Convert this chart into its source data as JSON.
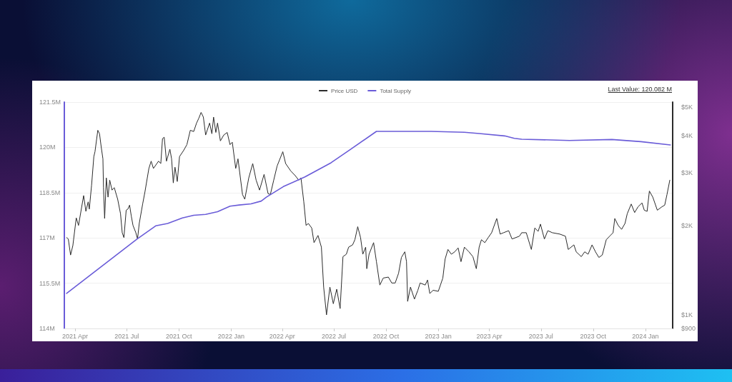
{
  "chart_data": {
    "type": "line",
    "legend": "top",
    "grid": "y",
    "marker": "none",
    "line_style": "solid",
    "log": "y2",
    "xlim": [
      "2021-03-13",
      "2024-02-18"
    ],
    "xticks": [
      {
        "value": "2021-04-01",
        "label": "2021 Apr"
      },
      {
        "value": "2021-07-01",
        "label": "2021 Jul"
      },
      {
        "value": "2021-10-01",
        "label": "2021 Oct"
      },
      {
        "value": "2022-01-01",
        "label": "2022 Jan"
      },
      {
        "value": "2022-04-01",
        "label": "2022 Apr"
      },
      {
        "value": "2022-07-01",
        "label": "2022 Jul"
      },
      {
        "value": "2022-10-01",
        "label": "2022 Oct"
      },
      {
        "value": "2023-01-01",
        "label": "2023 Jan"
      },
      {
        "value": "2023-04-01",
        "label": "2023 Apr"
      },
      {
        "value": "2023-07-01",
        "label": "2023 Jul"
      },
      {
        "value": "2023-10-01",
        "label": "2023 Oct"
      },
      {
        "value": "2024-01-01",
        "label": "2024 Jan"
      }
    ],
    "ylim": [
      114,
      121.5
    ],
    "yticks": [
      {
        "value": 114,
        "label": "114M"
      },
      {
        "value": 115.5,
        "label": "115.5M"
      },
      {
        "value": 117,
        "label": "117M"
      },
      {
        "value": 118.5,
        "label": "118.5M"
      },
      {
        "value": 120,
        "label": "120M"
      },
      {
        "value": 121.5,
        "label": "121.5M"
      }
    ],
    "y2lim": [
      900,
      5200
    ],
    "y2ticks": [
      {
        "value": 900,
        "label": "$900"
      },
      {
        "value": 1000,
        "label": "$1K"
      },
      {
        "value": 2000,
        "label": "$2K"
      },
      {
        "value": 3000,
        "label": "$3K"
      },
      {
        "value": 4000,
        "label": "$4K"
      },
      {
        "value": 5000,
        "label": "$5K"
      }
    ],
    "annotations": [
      "Last Value: 120.082 M"
    ],
    "series": [
      {
        "name": "Price USD",
        "color": "#2b2b2b",
        "axis": "y2",
        "x": [
          "2021-03-17",
          "2021-03-20",
          "2021-03-24",
          "2021-03-28",
          "2021-04-03",
          "2021-04-07",
          "2021-04-16",
          "2021-04-20",
          "2021-04-24",
          "2021-04-26",
          "2021-04-30",
          "2021-05-04",
          "2021-05-06",
          "2021-05-11",
          "2021-05-14",
          "2021-05-17",
          "2021-05-20",
          "2021-05-21",
          "2021-05-23",
          "2021-05-26",
          "2021-05-29",
          "2021-06-01",
          "2021-06-05",
          "2021-06-09",
          "2021-06-15",
          "2021-06-20",
          "2021-06-23",
          "2021-06-26",
          "2021-06-30",
          "2021-07-03",
          "2021-07-06",
          "2021-07-09",
          "2021-07-12",
          "2021-07-17",
          "2021-07-20",
          "2021-07-23",
          "2021-07-29",
          "2021-08-02",
          "2021-08-09",
          "2021-08-13",
          "2021-08-17",
          "2021-08-26",
          "2021-08-30",
          "2021-09-02",
          "2021-09-05",
          "2021-09-09",
          "2021-09-15",
          "2021-09-18",
          "2021-09-21",
          "2021-09-24",
          "2021-09-28",
          "2021-10-02",
          "2021-10-09",
          "2021-10-15",
          "2021-10-21",
          "2021-10-27",
          "2021-11-01",
          "2021-11-05",
          "2021-11-09",
          "2021-11-13",
          "2021-11-17",
          "2021-11-24",
          "2021-11-28",
          "2021-12-01",
          "2021-12-05",
          "2021-12-08",
          "2021-12-13",
          "2021-12-19",
          "2021-12-25",
          "2021-12-30",
          "2022-01-03",
          "2022-01-09",
          "2022-01-13",
          "2022-01-21",
          "2022-01-25",
          "2022-02-01",
          "2022-02-08",
          "2022-02-14",
          "2022-02-20",
          "2022-02-28",
          "2022-03-07",
          "2022-03-11",
          "2022-03-17",
          "2022-03-23",
          "2022-04-02",
          "2022-04-07",
          "2022-04-16",
          "2022-04-24",
          "2022-04-30",
          "2022-05-04",
          "2022-05-09",
          "2022-05-13",
          "2022-05-17",
          "2022-05-23",
          "2022-05-27",
          "2022-06-03",
          "2022-06-09",
          "2022-06-13",
          "2022-06-18",
          "2022-06-24",
          "2022-06-30",
          "2022-07-06",
          "2022-07-12",
          "2022-07-17",
          "2022-07-23",
          "2022-07-27",
          "2022-08-03",
          "2022-08-07",
          "2022-08-12",
          "2022-08-17",
          "2022-08-21",
          "2022-08-26",
          "2022-08-28",
          "2022-09-01",
          "2022-09-09",
          "2022-09-14",
          "2022-09-20",
          "2022-09-26",
          "2022-10-05",
          "2022-10-11",
          "2022-10-17",
          "2022-10-23",
          "2022-10-28",
          "2022-11-03",
          "2022-11-06",
          "2022-11-08",
          "2022-11-13",
          "2022-11-20",
          "2022-11-26",
          "2022-11-30",
          "2022-12-09",
          "2022-12-13",
          "2022-12-17",
          "2022-12-23",
          "2023-01-01",
          "2023-01-09",
          "2023-01-13",
          "2023-01-18",
          "2023-01-24",
          "2023-01-30",
          "2023-02-05",
          "2023-02-10",
          "2023-02-16",
          "2023-02-24",
          "2023-03-03",
          "2023-03-09",
          "2023-03-14",
          "2023-03-18",
          "2023-03-24",
          "2023-03-30",
          "2023-04-05",
          "2023-04-14",
          "2023-04-20",
          "2023-04-26",
          "2023-05-05",
          "2023-05-11",
          "2023-05-24",
          "2023-05-28",
          "2023-06-05",
          "2023-06-14",
          "2023-06-20",
          "2023-06-26",
          "2023-06-30",
          "2023-07-07",
          "2023-07-13",
          "2023-07-21",
          "2023-08-03",
          "2023-08-13",
          "2023-08-18",
          "2023-08-28",
          "2023-09-01",
          "2023-09-10",
          "2023-09-16",
          "2023-09-22",
          "2023-09-29",
          "2023-10-05",
          "2023-10-11",
          "2023-10-17",
          "2023-10-24",
          "2023-10-30",
          "2023-11-05",
          "2023-11-08",
          "2023-11-14",
          "2023-11-20",
          "2023-11-26",
          "2023-11-30",
          "2023-12-07",
          "2023-12-13",
          "2023-12-19",
          "2023-12-26",
          "2023-12-30",
          "2024-01-04",
          "2024-01-08",
          "2024-01-14",
          "2024-01-22",
          "2024-01-30",
          "2024-02-04",
          "2024-02-08",
          "2024-02-13"
        ],
        "values": [
          1820,
          1800,
          1590,
          1710,
          2120,
          2000,
          2520,
          2230,
          2400,
          2270,
          2730,
          3410,
          3540,
          4180,
          4070,
          3670,
          3350,
          2680,
          2110,
          2890,
          2490,
          2840,
          2630,
          2680,
          2450,
          2190,
          1890,
          1820,
          2250,
          2270,
          2340,
          2150,
          2000,
          1890,
          1800,
          2030,
          2360,
          2590,
          3110,
          3290,
          3110,
          3290,
          3230,
          3920,
          3960,
          3290,
          3610,
          3350,
          2780,
          3140,
          2810,
          3410,
          3570,
          3740,
          4180,
          4140,
          4420,
          4590,
          4800,
          4630,
          4030,
          4420,
          4070,
          4630,
          4110,
          4420,
          3850,
          4030,
          4110,
          3740,
          3810,
          3110,
          3350,
          2540,
          2450,
          2890,
          3230,
          2840,
          2630,
          2970,
          2560,
          2540,
          2840,
          3170,
          3540,
          3230,
          3050,
          2940,
          2840,
          2890,
          2400,
          2000,
          2030,
          1960,
          1750,
          1850,
          1690,
          1240,
          1000,
          1240,
          1090,
          1220,
          1050,
          1570,
          1600,
          1690,
          1720,
          1790,
          1980,
          1820,
          1600,
          1690,
          1430,
          1600,
          1750,
          1510,
          1260,
          1330,
          1340,
          1280,
          1280,
          1380,
          1560,
          1630,
          1510,
          1110,
          1240,
          1130,
          1210,
          1280,
          1260,
          1310,
          1180,
          1210,
          1200,
          1330,
          1540,
          1660,
          1600,
          1630,
          1680,
          1510,
          1690,
          1630,
          1570,
          1430,
          1690,
          1790,
          1750,
          1820,
          1890,
          2110,
          1870,
          1890,
          1920,
          1800,
          1840,
          1890,
          1890,
          1660,
          1960,
          1910,
          2020,
          1800,
          1920,
          1890,
          1870,
          1840,
          1660,
          1720,
          1630,
          1570,
          1630,
          1600,
          1720,
          1630,
          1560,
          1590,
          1790,
          1840,
          1890,
          2110,
          2000,
          1940,
          2030,
          2190,
          2360,
          2210,
          2310,
          2380,
          2250,
          2230,
          2610,
          2490,
          2250,
          2310,
          2340,
          2540,
          2840
        ]
      },
      {
        "name": "Total Supply",
        "color": "#6a5cd8",
        "x": [
          "2021-03-17",
          "2021-07-19",
          "2021-08-21",
          "2021-09-11",
          "2021-10-07",
          "2021-10-27",
          "2021-11-17",
          "2021-12-08",
          "2021-12-30",
          "2022-01-15",
          "2022-02-05",
          "2022-02-23",
          "2022-03-04",
          "2022-04-03",
          "2022-05-11",
          "2022-06-26",
          "2022-07-30",
          "2022-09-14",
          "2022-12-19",
          "2023-02-16",
          "2023-03-14",
          "2023-04-28",
          "2023-05-15",
          "2023-05-28",
          "2023-08-20",
          "2023-11-03",
          "2023-12-24",
          "2024-02-14"
        ],
        "values": [
          115.16,
          116.96,
          117.4,
          117.48,
          117.66,
          117.75,
          117.78,
          117.87,
          118.05,
          118.09,
          118.13,
          118.22,
          118.35,
          118.7,
          119.02,
          119.49,
          119.93,
          120.53,
          120.53,
          120.5,
          120.46,
          120.38,
          120.3,
          120.27,
          120.23,
          120.26,
          120.19,
          120.08
        ]
      }
    ]
  }
}
